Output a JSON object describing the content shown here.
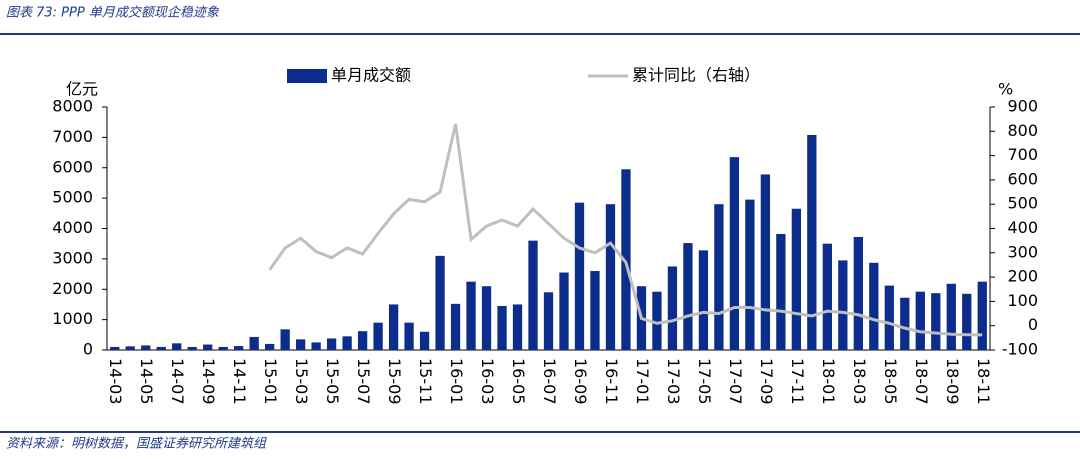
{
  "chart_data": {
    "type": "bar+line",
    "title": "图表 73:  PPP 单月成交额现企稳迹象",
    "source": "资料来源：明树数据，国盛证券研究所建筑组",
    "ylabel": "亿元",
    "y2label": "%",
    "categories": [
      "14-03",
      null,
      "14-05",
      null,
      "14-07",
      null,
      "14-09",
      null,
      "14-11",
      null,
      "15-01",
      null,
      "15-03",
      null,
      "15-05",
      null,
      "15-07",
      null,
      "15-09",
      null,
      "15-11",
      null,
      "16-01",
      null,
      "16-03",
      null,
      "16-05",
      null,
      "16-07",
      null,
      "16-09",
      null,
      "16-11",
      null,
      "17-01",
      null,
      "17-03",
      null,
      "17-05",
      null,
      "17-07",
      null,
      "17-09",
      null,
      "17-11",
      null,
      "18-01",
      null,
      "18-03",
      null,
      "18-05",
      null,
      "18-07",
      null,
      "18-09",
      null,
      "18-11"
    ],
    "series": [
      {
        "name": "单月成交额",
        "color": "#0d2d8c",
        "type": "bar",
        "values": [
          100,
          120,
          150,
          100,
          220,
          100,
          180,
          100,
          130,
          430,
          200,
          680,
          350,
          250,
          380,
          450,
          620,
          900,
          1500,
          900,
          600,
          3100,
          1520,
          2250,
          2100,
          1450,
          1500,
          3600,
          1900,
          2550,
          4850,
          2600,
          4800,
          5950,
          2100,
          1920,
          2750,
          3520,
          3280,
          4800,
          6350,
          4950,
          5780,
          3820,
          4650,
          7080,
          3500,
          2950,
          3720,
          2870,
          2120,
          1720,
          1920,
          1870,
          2180,
          1850,
          2250
        ]
      },
      {
        "name": "累计同比（右轴）",
        "color": "#bfbfbf",
        "type": "line",
        "axis": "y2",
        "values": [
          null,
          null,
          null,
          null,
          null,
          null,
          null,
          null,
          null,
          null,
          230,
          320,
          360,
          305,
          280,
          320,
          295,
          380,
          460,
          520,
          510,
          550,
          830,
          355,
          410,
          435,
          410,
          480,
          420,
          360,
          320,
          300,
          340,
          260,
          30,
          10,
          20,
          40,
          55,
          50,
          75,
          75,
          65,
          60,
          50,
          40,
          60,
          55,
          45,
          25,
          10,
          -10,
          -25,
          -30,
          -35,
          -37,
          -38
        ]
      }
    ],
    "ylim": [
      0,
      8000
    ],
    "yticks": [
      0,
      1000,
      2000,
      3000,
      4000,
      5000,
      6000,
      7000,
      8000
    ],
    "y2lim": [
      -100,
      900
    ],
    "y2ticks": [
      -100,
      0,
      100,
      200,
      300,
      400,
      500,
      600,
      700,
      800,
      900
    ]
  }
}
